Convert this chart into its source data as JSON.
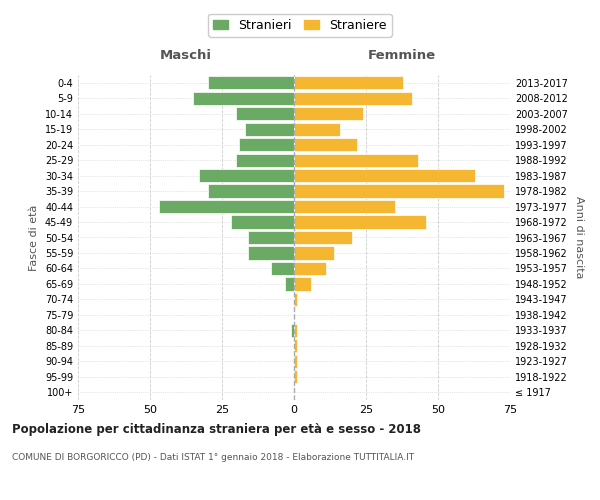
{
  "age_groups": [
    "100+",
    "95-99",
    "90-94",
    "85-89",
    "80-84",
    "75-79",
    "70-74",
    "65-69",
    "60-64",
    "55-59",
    "50-54",
    "45-49",
    "40-44",
    "35-39",
    "30-34",
    "25-29",
    "20-24",
    "15-19",
    "10-14",
    "5-9",
    "0-4"
  ],
  "birth_years": [
    "≤ 1917",
    "1918-1922",
    "1923-1927",
    "1928-1932",
    "1933-1937",
    "1938-1942",
    "1943-1947",
    "1948-1952",
    "1953-1957",
    "1958-1962",
    "1963-1967",
    "1968-1972",
    "1973-1977",
    "1978-1982",
    "1983-1987",
    "1988-1992",
    "1993-1997",
    "1998-2002",
    "2003-2007",
    "2008-2012",
    "2013-2017"
  ],
  "males": [
    0,
    0,
    0,
    0,
    1,
    0,
    0,
    3,
    8,
    16,
    16,
    22,
    47,
    30,
    33,
    20,
    19,
    17,
    20,
    35,
    30
  ],
  "females": [
    0,
    1,
    1,
    1,
    1,
    0,
    1,
    6,
    11,
    14,
    20,
    46,
    35,
    73,
    63,
    43,
    22,
    16,
    24,
    41,
    38
  ],
  "male_color": "#6aaa64",
  "female_color": "#f5b731",
  "title": "Popolazione per cittadinanza straniera per età e sesso - 2018",
  "subtitle": "COMUNE DI BORGORICCO (PD) - Dati ISTAT 1° gennaio 2018 - Elaborazione TUTTITALIA.IT",
  "xlabel_left": "Maschi",
  "xlabel_right": "Femmine",
  "ylabel_left": "Fasce di età",
  "ylabel_right": "Anni di nascita",
  "legend_males": "Stranieri",
  "legend_females": "Straniere",
  "xlim": 75,
  "background_color": "#ffffff",
  "grid_color": "#cccccc"
}
